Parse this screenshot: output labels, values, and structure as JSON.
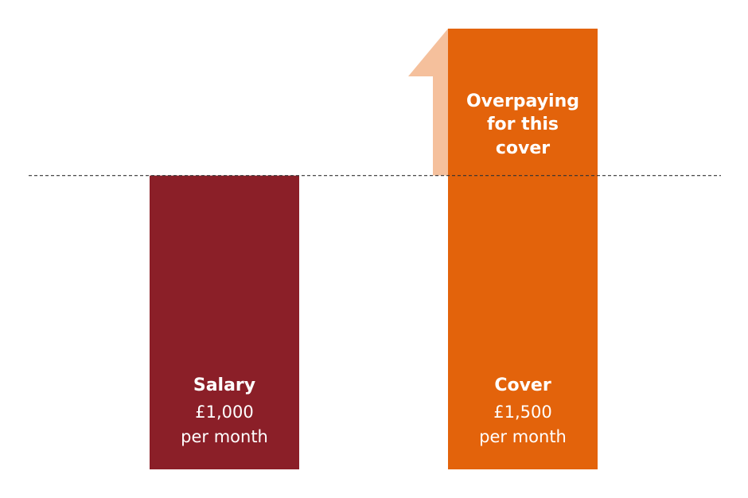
{
  "chart_data": {
    "type": "bar",
    "categories": [
      "Salary",
      "Cover"
    ],
    "values": [
      1000,
      1500
    ],
    "value_labels": [
      "£1,000",
      "£1,500"
    ],
    "unit_label": "per month",
    "colors": [
      "#8b1f28",
      "#e3630b"
    ],
    "reference_line": {
      "value": 1000,
      "style": "dashed",
      "color": "#333333"
    },
    "annotation": {
      "lines": [
        "Overpaying",
        "for this",
        "cover"
      ],
      "arrow_color": "#f5c09c",
      "direction": "up"
    },
    "ylim": [
      0,
      1500
    ],
    "grid": false,
    "title": "",
    "xlabel": "",
    "ylabel": ""
  }
}
